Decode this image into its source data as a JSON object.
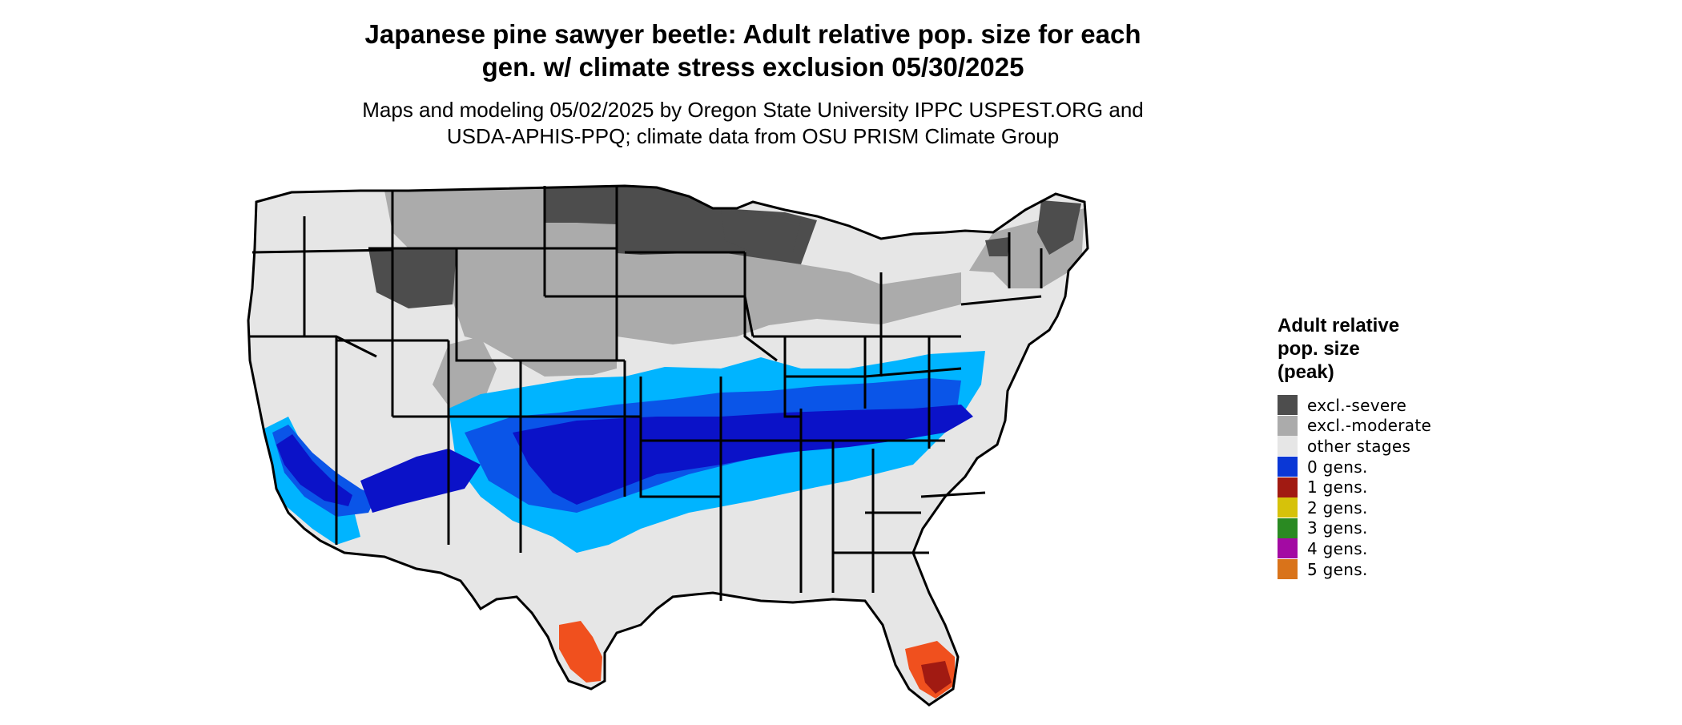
{
  "title_line1": "Japanese pine sawyer beetle: Adult relative pop. size for each",
  "title_line2": "gen. w/ climate stress exclusion 05/30/2025",
  "subtitle_line1": "Maps and modeling 05/02/2025 by Oregon State University IPPC USPEST.ORG and",
  "subtitle_line2": "USDA-APHIS-PPQ; climate data from OSU PRISM Climate Group",
  "legend": {
    "title_line1": "Adult relative",
    "title_line2": "pop. size",
    "title_line3": "(peak)",
    "items": [
      {
        "label": "excl.-severe",
        "color": "#4d4d4d"
      },
      {
        "label": "excl.-moderate",
        "color": "#ababab"
      },
      {
        "label": "other stages",
        "color": "#e6e6e6"
      },
      {
        "label": "0 gens.",
        "color": "#0a37d6"
      },
      {
        "label": "1 gens.",
        "color": "#a11a12"
      },
      {
        "label": "2 gens.",
        "color": "#d6c20a"
      },
      {
        "label": "3 gens.",
        "color": "#2a8a22"
      },
      {
        "label": "4 gens.",
        "color": "#a30aa3"
      },
      {
        "label": "5 gens.",
        "color": "#d9731a"
      }
    ]
  },
  "map_colors": {
    "background_land": "#e6e6e6",
    "excl_severe": "#4d4d4d",
    "excl_moderate": "#ababab",
    "light_blue": "#00b4ff",
    "mid_blue": "#0a55e8",
    "dark_blue": "#0b12c8",
    "orange_red": "#f0501e",
    "border": "#000000"
  }
}
